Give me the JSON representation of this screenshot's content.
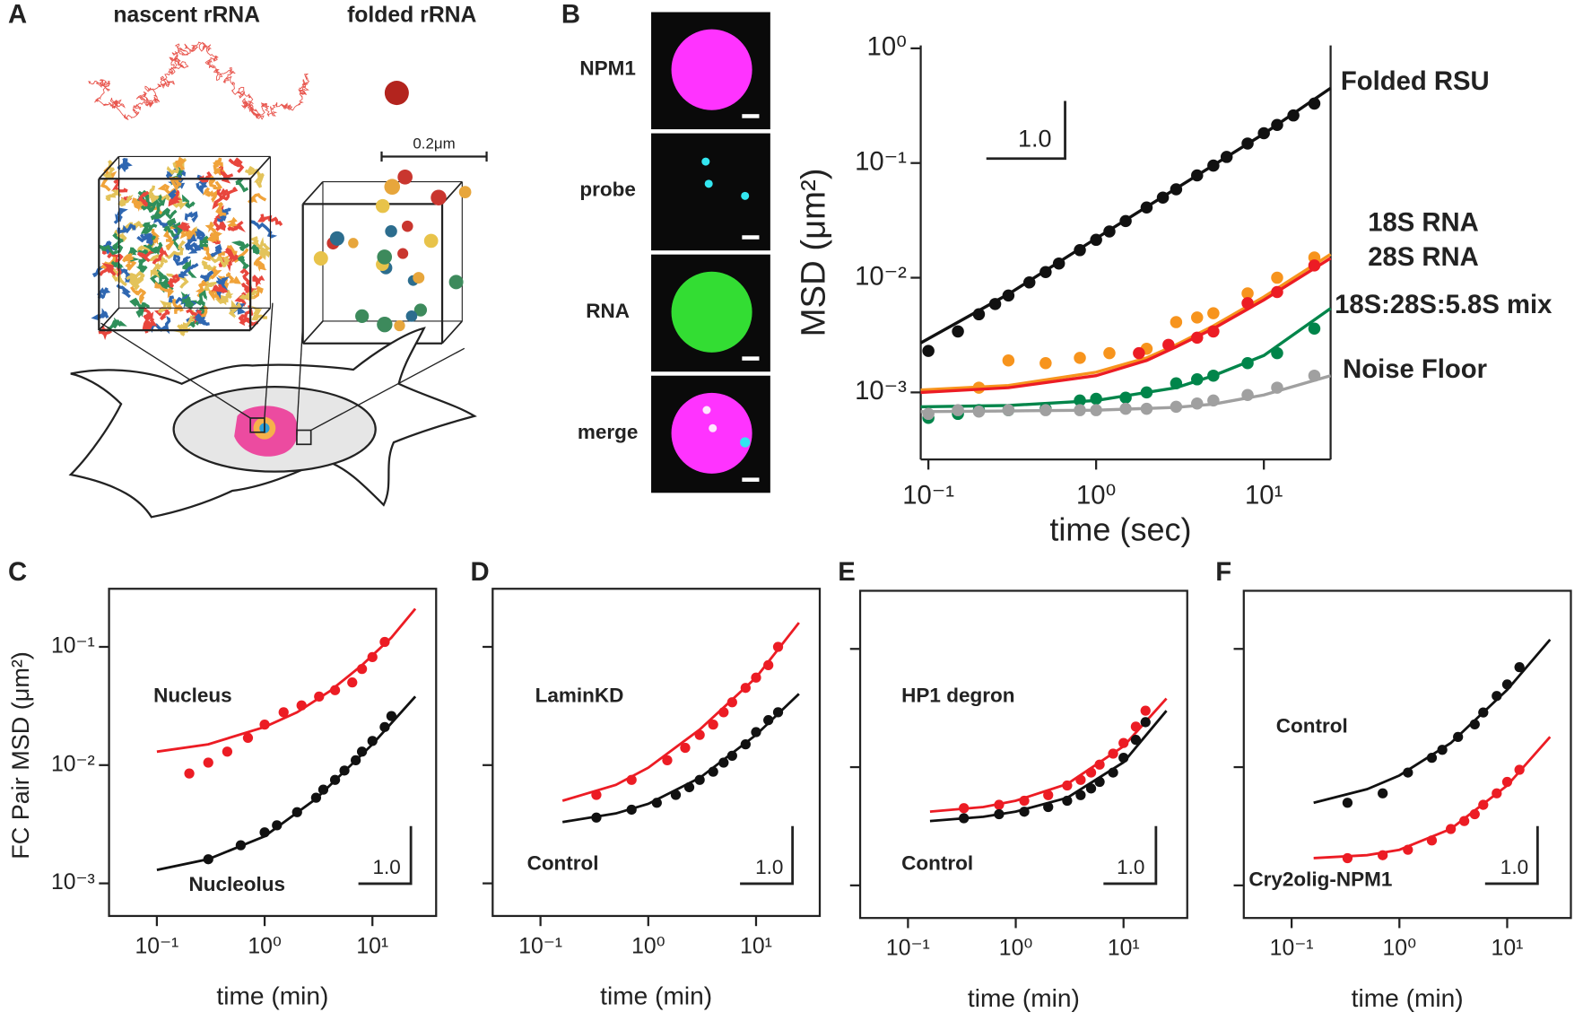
{
  "panel_a": {
    "label": "A",
    "titles": [
      "nascent rRNA",
      "folded rRNA"
    ],
    "scale_bar": "0.2μm"
  },
  "panel_b_images": {
    "label": "B",
    "channels": [
      "NPM1",
      "probe",
      "RNA",
      "merge"
    ]
  },
  "chart_data": [
    {
      "type": "scatter",
      "ylabel": "MSD (μm²)",
      "xlabel": "time (sec)",
      "xlog": true,
      "ylog": true,
      "xlim": [
        0.09,
        25
      ],
      "ylim": [
        0.00026,
        1.06
      ],
      "xticks": [
        {
          "value": 0.1,
          "label": "10⁻¹"
        },
        {
          "value": 1,
          "label": "10⁰"
        },
        {
          "value": 10,
          "label": "10¹"
        }
      ],
      "yticks": [
        {
          "value": 0.001,
          "label": "10⁻³"
        },
        {
          "value": 0.01,
          "label": "10⁻²"
        },
        {
          "value": 0.1,
          "label": "10⁻¹"
        },
        {
          "value": 1,
          "label": "10⁰"
        }
      ],
      "scale_bar": "1.0",
      "series": [
        {
          "name": "Folded RSU",
          "color": "#111111",
          "x": [
            0.1,
            0.15,
            0.2,
            0.25,
            0.3,
            0.4,
            0.5,
            0.6,
            0.8,
            1,
            1.2,
            1.5,
            2,
            2.5,
            3,
            4,
            5,
            6,
            8,
            10,
            12,
            15,
            20
          ],
          "values": [
            0.0023,
            0.0034,
            0.0048,
            0.0059,
            0.007,
            0.0091,
            0.0112,
            0.0133,
            0.0174,
            0.0214,
            0.0253,
            0.0312,
            0.041,
            0.05,
            0.059,
            0.078,
            0.095,
            0.113,
            0.148,
            0.182,
            0.215,
            0.26,
            0.33
          ],
          "fit_x": [
            0.09,
            0.3,
            1,
            3,
            10,
            25
          ],
          "fit": [
            0.0027,
            0.0072,
            0.022,
            0.06,
            0.18,
            0.45
          ]
        },
        {
          "name": "18S RNA",
          "color": "#f7941d",
          "x": [
            0.2,
            0.3,
            0.5,
            0.8,
            1.2,
            2,
            3,
            4,
            5,
            8,
            12,
            20
          ],
          "values": [
            0.0011,
            0.0019,
            0.0018,
            0.002,
            0.0022,
            0.0024,
            0.0041,
            0.0045,
            0.0049,
            0.0073,
            0.01,
            0.015
          ],
          "fit_x": [
            0.09,
            0.3,
            1,
            2,
            3,
            5,
            10,
            25
          ],
          "fit": [
            0.00105,
            0.00115,
            0.0015,
            0.002,
            0.0026,
            0.0038,
            0.0068,
            0.016
          ]
        },
        {
          "name": "28S RNA",
          "color": "#ec1c24",
          "x": [
            1.8,
            2.7,
            4,
            5,
            8,
            12,
            20
          ],
          "values": [
            0.0022,
            0.0026,
            0.003,
            0.0034,
            0.006,
            0.0075,
            0.0128
          ],
          "fit_x": [
            0.09,
            0.3,
            1,
            2,
            3,
            5,
            10,
            25
          ],
          "fit": [
            0.001,
            0.0011,
            0.0014,
            0.0019,
            0.0025,
            0.0036,
            0.0064,
            0.0148
          ]
        },
        {
          "name": "18S:28S:5.8S mix",
          "color": "#00854a",
          "x": [
            0.1,
            0.15,
            0.2,
            0.3,
            0.5,
            0.8,
            1,
            1.5,
            2,
            3,
            4,
            5,
            8,
            12,
            20
          ],
          "values": [
            0.0006,
            0.00065,
            0.0007,
            0.0007,
            0.00072,
            0.00085,
            0.00088,
            0.0009,
            0.001,
            0.0012,
            0.0013,
            0.0014,
            0.0018,
            0.0022,
            0.0036
          ],
          "fit_x": [
            0.09,
            0.3,
            1,
            3,
            5,
            10,
            25
          ],
          "fit": [
            0.00075,
            0.00077,
            0.00085,
            0.0011,
            0.0014,
            0.0021,
            0.0054
          ]
        },
        {
          "name": "Noise Floor",
          "color": "#a0a0a0",
          "x": [
            0.1,
            0.15,
            0.2,
            0.3,
            0.5,
            0.8,
            1,
            1.5,
            2,
            3,
            4,
            5,
            8,
            12,
            20
          ],
          "values": [
            0.00065,
            0.0007,
            0.00068,
            0.0007,
            0.0007,
            0.0007,
            0.0007,
            0.00072,
            0.00072,
            0.00075,
            0.0008,
            0.00085,
            0.00095,
            0.0011,
            0.0014
          ],
          "fit_x": [
            0.09,
            0.3,
            1,
            3,
            5,
            10,
            25
          ],
          "fit": [
            0.00068,
            0.00069,
            0.0007,
            0.00074,
            0.00079,
            0.00095,
            0.0014
          ]
        }
      ]
    },
    {
      "type": "scatter",
      "label": "C",
      "ylabel": "FC Pair MSD (μm²)",
      "xlabel": "time (min)",
      "xlog": true,
      "ylog": true,
      "xlim": [
        0.036,
        39
      ],
      "ylim": [
        0.00053,
        0.31
      ],
      "xticks": [
        {
          "value": 0.1,
          "label": "10⁻¹"
        },
        {
          "value": 1,
          "label": "10⁰"
        },
        {
          "value": 10,
          "label": "10¹"
        }
      ],
      "yticks": [
        {
          "value": 0.001,
          "label": "10⁻³"
        },
        {
          "value": 0.01,
          "label": "10⁻²"
        },
        {
          "value": 0.1,
          "label": "10⁻¹"
        }
      ],
      "scale_bar": "1.0",
      "series": [
        {
          "name": "Nucleus",
          "color": "#ec1c24",
          "x": [
            0.2,
            0.3,
            0.45,
            0.7,
            1,
            1.5,
            2.2,
            3.2,
            4.5,
            6.5,
            8,
            10,
            13
          ],
          "values": [
            0.0085,
            0.0105,
            0.013,
            0.017,
            0.022,
            0.028,
            0.032,
            0.038,
            0.043,
            0.05,
            0.065,
            0.082,
            0.11
          ],
          "fit_x": [
            0.1,
            0.3,
            1,
            2,
            4,
            8,
            15,
            25
          ],
          "fit": [
            0.013,
            0.015,
            0.021,
            0.028,
            0.042,
            0.07,
            0.12,
            0.21
          ]
        },
        {
          "name": "Nucleolus",
          "color": "#111111",
          "x": [
            0.3,
            0.6,
            1,
            1.3,
            2,
            3,
            3.5,
            4.5,
            5.5,
            7,
            8,
            10,
            13,
            15
          ],
          "values": [
            0.0016,
            0.0021,
            0.0027,
            0.0031,
            0.004,
            0.0053,
            0.0062,
            0.0075,
            0.009,
            0.011,
            0.013,
            0.016,
            0.021,
            0.026
          ],
          "fit_x": [
            0.1,
            0.3,
            1,
            3,
            10,
            25
          ],
          "fit": [
            0.0013,
            0.0016,
            0.0025,
            0.0052,
            0.015,
            0.038
          ]
        }
      ]
    },
    {
      "type": "scatter",
      "label": "D",
      "xlabel": "time (min)",
      "xlog": true,
      "ylog": true,
      "xlim": [
        0.036,
        39
      ],
      "ylim": [
        0.00053,
        0.31
      ],
      "xticks": [
        {
          "value": 0.1,
          "label": "10⁻¹"
        },
        {
          "value": 1,
          "label": "10⁰"
        },
        {
          "value": 10,
          "label": "10¹"
        }
      ],
      "yticks": [
        0.001,
        0.01,
        0.1
      ],
      "ytick_labels": false,
      "scale_bar": "1.0",
      "series": [
        {
          "name": "LaminKD",
          "color": "#ec1c24",
          "x": [
            0.33,
            0.7,
            1.5,
            2.2,
            3,
            4,
            5,
            6,
            8,
            10,
            13,
            16
          ],
          "values": [
            0.0056,
            0.0075,
            0.011,
            0.014,
            0.018,
            0.022,
            0.028,
            0.034,
            0.045,
            0.055,
            0.07,
            0.1
          ],
          "fit_x": [
            0.16,
            0.5,
            1,
            3,
            10,
            25
          ],
          "fit": [
            0.005,
            0.0068,
            0.0095,
            0.02,
            0.055,
            0.16
          ]
        },
        {
          "name": "Control",
          "color": "#111111",
          "x": [
            0.33,
            0.7,
            1.2,
            1.8,
            2.4,
            3,
            4,
            5,
            6,
            8,
            10,
            13,
            16
          ],
          "values": [
            0.0036,
            0.0042,
            0.0048,
            0.0056,
            0.0065,
            0.0075,
            0.0088,
            0.0105,
            0.012,
            0.015,
            0.019,
            0.024,
            0.028
          ],
          "fit_x": [
            0.16,
            0.5,
            1,
            3,
            10,
            25
          ],
          "fit": [
            0.0033,
            0.0039,
            0.0047,
            0.0078,
            0.018,
            0.04
          ]
        }
      ]
    },
    {
      "type": "scatter",
      "label": "E",
      "xlabel": "time (min)",
      "xlog": true,
      "ylog": true,
      "xlim": [
        0.036,
        39
      ],
      "ylim": [
        0.00053,
        0.31
      ],
      "xticks": [
        {
          "value": 0.1,
          "label": "10⁻¹"
        },
        {
          "value": 1,
          "label": "10⁰"
        },
        {
          "value": 10,
          "label": "10¹"
        }
      ],
      "yticks": [
        0.001,
        0.01,
        0.1
      ],
      "ytick_labels": false,
      "scale_bar": "1.0",
      "series": [
        {
          "name": "HP1 degron",
          "color": "#ec1c24",
          "x": [
            0.33,
            0.7,
            1.2,
            2,
            3,
            4,
            5,
            6,
            8,
            10,
            13,
            16
          ],
          "values": [
            0.0045,
            0.0048,
            0.0052,
            0.0058,
            0.007,
            0.0078,
            0.009,
            0.0105,
            0.013,
            0.016,
            0.022,
            0.03
          ],
          "fit_x": [
            0.16,
            0.5,
            1,
            3,
            10,
            25
          ],
          "fit": [
            0.0042,
            0.0046,
            0.0052,
            0.0072,
            0.015,
            0.038
          ]
        },
        {
          "name": "Control",
          "color": "#111111",
          "x": [
            0.33,
            0.7,
            1.2,
            2,
            3,
            4,
            5,
            6,
            8,
            10,
            13,
            16
          ],
          "values": [
            0.0037,
            0.004,
            0.0042,
            0.0046,
            0.0052,
            0.0058,
            0.0066,
            0.0075,
            0.009,
            0.012,
            0.017,
            0.024
          ],
          "fit_x": [
            0.16,
            0.5,
            1,
            3,
            10,
            25
          ],
          "fit": [
            0.0035,
            0.0038,
            0.0042,
            0.0055,
            0.011,
            0.03
          ]
        }
      ]
    },
    {
      "type": "scatter",
      "label": "F",
      "xlabel": "time (min)",
      "xlog": true,
      "ylog": true,
      "xlim": [
        0.036,
        39
      ],
      "ylim": [
        0.00053,
        0.31
      ],
      "xticks": [
        {
          "value": 0.1,
          "label": "10⁻¹"
        },
        {
          "value": 1,
          "label": "10⁰"
        },
        {
          "value": 10,
          "label": "10¹"
        }
      ],
      "yticks": [
        0.001,
        0.01,
        0.1
      ],
      "ytick_labels": false,
      "scale_bar": "1.0",
      "series": [
        {
          "name": "Control",
          "color": "#111111",
          "x": [
            0.33,
            0.7,
            1.2,
            2,
            2.5,
            3.5,
            5,
            6,
            8,
            10,
            13
          ],
          "values": [
            0.005,
            0.006,
            0.009,
            0.012,
            0.014,
            0.018,
            0.023,
            0.029,
            0.04,
            0.05,
            0.07
          ],
          "fit_x": [
            0.16,
            0.5,
            1,
            3,
            10,
            25
          ],
          "fit": [
            0.005,
            0.0065,
            0.0085,
            0.016,
            0.045,
            0.12
          ]
        },
        {
          "name": "Cry2olig-NPM1",
          "color": "#ec1c24",
          "x": [
            0.33,
            0.7,
            1.2,
            2,
            3,
            4,
            5,
            6,
            8,
            10,
            13
          ],
          "values": [
            0.0017,
            0.0018,
            0.002,
            0.0024,
            0.003,
            0.0035,
            0.004,
            0.0048,
            0.006,
            0.0075,
            0.0095
          ],
          "fit_x": [
            0.16,
            0.5,
            1,
            3,
            10,
            25
          ],
          "fit": [
            0.0017,
            0.0018,
            0.002,
            0.003,
            0.007,
            0.018
          ]
        }
      ]
    }
  ]
}
